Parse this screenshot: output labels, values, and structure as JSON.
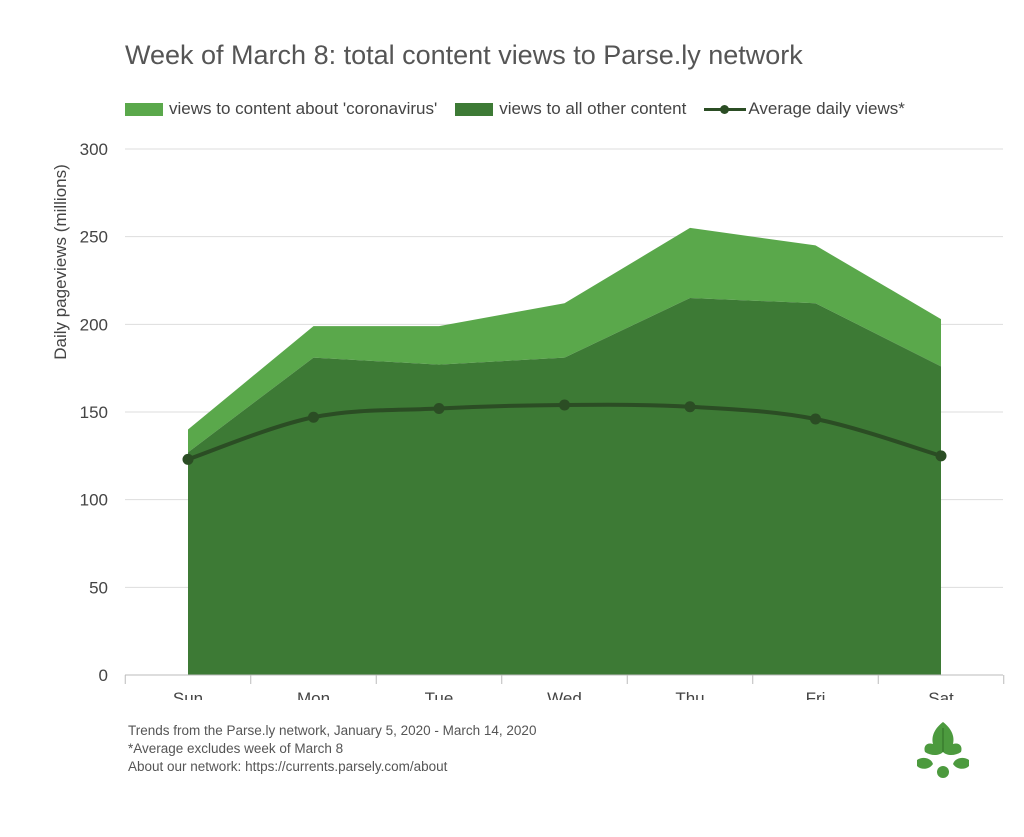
{
  "chart_data": {
    "type": "area",
    "title": "Week of March 8: total content views to Parse.ly network",
    "ylabel": "Daily pageviews  (millions)",
    "xlabel": "",
    "categories": [
      "Sun",
      "Mon",
      "Tue",
      "Wed",
      "Thu",
      "Fri",
      "Sat"
    ],
    "ylim": [
      0,
      300
    ],
    "yticks": [
      0,
      50,
      100,
      150,
      200,
      250,
      300
    ],
    "stacked": true,
    "grid": true,
    "legend_position": "top",
    "series": [
      {
        "name": "views to all other content",
        "kind": "area",
        "color": "#3d7a35",
        "values": [
          127,
          181,
          177,
          181,
          215,
          212,
          176
        ]
      },
      {
        "name": "views to content about 'coronavirus'",
        "kind": "area",
        "color": "#5aa84b",
        "values": [
          13,
          18,
          22,
          31,
          40,
          33,
          27
        ]
      },
      {
        "name": "Average daily views*",
        "kind": "line",
        "color": "#2b4d24",
        "values": [
          123,
          147,
          152,
          154,
          153,
          146,
          125
        ]
      }
    ]
  },
  "legend": [
    {
      "label": "views to content about 'coronavirus'",
      "color": "#5aa84b"
    },
    {
      "label": "views to all other content",
      "color": "#3d7a35"
    },
    {
      "label": "Average daily views*",
      "color": "#2b4d24"
    }
  ],
  "footer": {
    "line1": "Trends from the Parse.ly network, January 5, 2020 - March 14, 2020",
    "line2": "*Average excludes week of March 8",
    "line3": "About our network: https://currents.parsely.com/about"
  },
  "colors": {
    "axis": "#bbbbbb",
    "grid": "#dddddd",
    "text": "#444444"
  },
  "icons": {
    "logo": "parsely-leaf-logo"
  }
}
